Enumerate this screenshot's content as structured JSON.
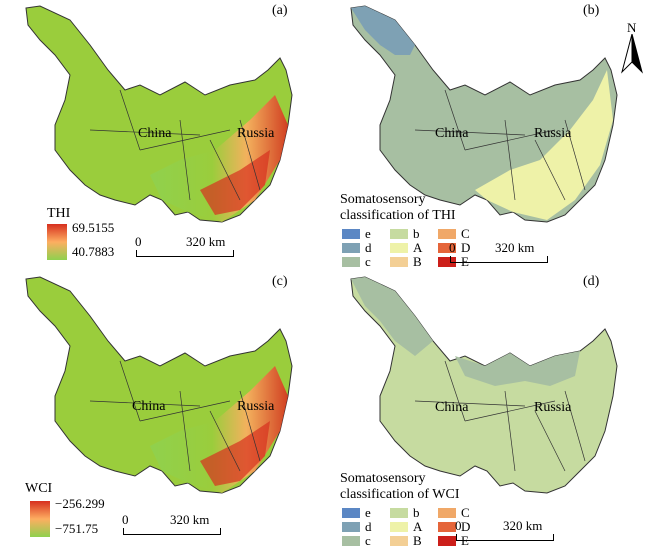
{
  "panels": {
    "a": {
      "label": "(a)",
      "legend_title": "THI",
      "max": "69.5155",
      "min": "40.7883",
      "scale": "320 km"
    },
    "b": {
      "label": "(b)",
      "legend_title_1": "Somatosensory",
      "legend_title_2": "classification of THI",
      "scale": "320 km"
    },
    "c": {
      "label": "(c)",
      "legend_title": "WCI",
      "max": "−256.299",
      "min": "−751.75",
      "scale": "320 km"
    },
    "d": {
      "label": "(d)",
      "legend_title_1": "Somatosensory",
      "legend_title_2": "classification of WCI",
      "scale": "320 km"
    }
  },
  "map_labels": {
    "china": "China",
    "russia": "Russia"
  },
  "scale_zero": "0",
  "north_arrow": {
    "label": "N",
    "icon": "north-arrow-icon"
  },
  "classes": [
    {
      "code": "e",
      "color": "#5b87c4"
    },
    {
      "code": "b",
      "color": "#c6dba0"
    },
    {
      "code": "C",
      "color": "#f0a868"
    },
    {
      "code": "d",
      "color": "#7ea1b4"
    },
    {
      "code": "A",
      "color": "#eef2a8"
    },
    {
      "code": "D",
      "color": "#e5653a"
    },
    {
      "code": "c",
      "color": "#a7bfa2"
    },
    {
      "code": "B",
      "color": "#f3cf95"
    },
    {
      "code": "E",
      "color": "#cc1f1a"
    }
  ],
  "colors": {
    "gradient_high": "#d7301f",
    "gradient_mid": "#fdae61",
    "gradient_low": "#8fd14f",
    "green_base": "#9acd3c",
    "b_base": "#a7bfa2",
    "d_base": "#c6dba0"
  }
}
